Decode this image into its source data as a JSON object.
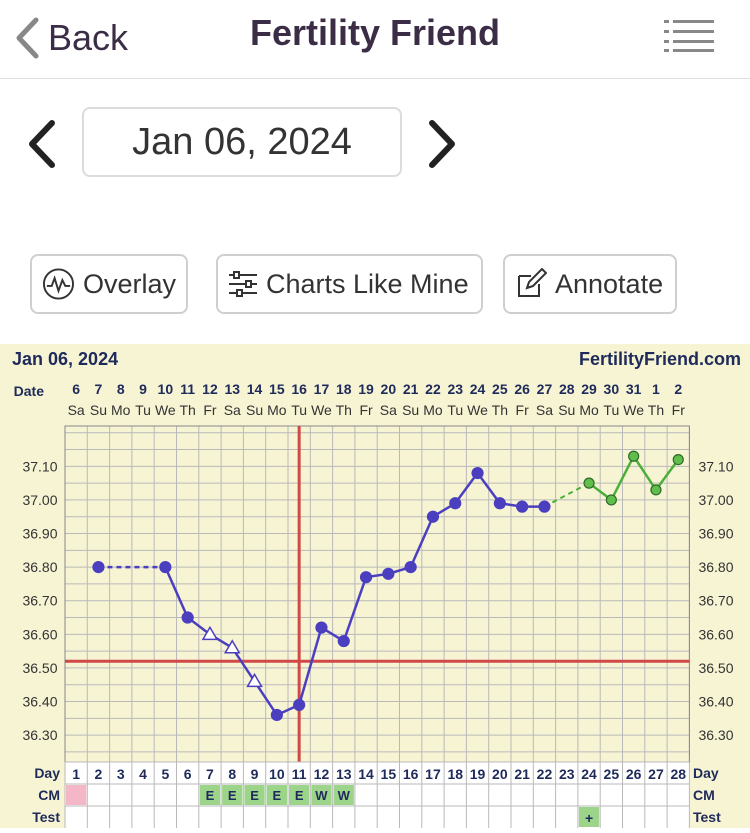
{
  "nav": {
    "back_label": "Back",
    "title": "Fertility Friend"
  },
  "date": {
    "value": "Jan 06, 2024"
  },
  "actions": {
    "overlay": "Overlay",
    "charts_like_mine": "Charts Like Mine",
    "annotate": "Annotate"
  },
  "chart_header": {
    "date": "Jan 06, 2024",
    "site": "FertilityFriend.com"
  },
  "chart_data": {
    "type": "line",
    "top_row_label": "Date",
    "dates": [
      "6",
      "7",
      "8",
      "9",
      "10",
      "11",
      "12",
      "13",
      "14",
      "15",
      "16",
      "17",
      "18",
      "19",
      "20",
      "21",
      "22",
      "23",
      "24",
      "25",
      "26",
      "27",
      "28",
      "29",
      "30",
      "31",
      "1",
      "2"
    ],
    "weekdays": [
      "Sa",
      "Su",
      "Mo",
      "Tu",
      "We",
      "Th",
      "Fr",
      "Sa",
      "Su",
      "Mo",
      "Tu",
      "We",
      "Th",
      "Fr",
      "Sa",
      "Su",
      "Mo",
      "Tu",
      "We",
      "Th",
      "Fr",
      "Sa",
      "Su",
      "Mo",
      "Tu",
      "We",
      "Th",
      "Fr"
    ],
    "day_row_label": "Day",
    "days": [
      1,
      2,
      3,
      4,
      5,
      6,
      7,
      8,
      9,
      10,
      11,
      12,
      13,
      14,
      15,
      16,
      17,
      18,
      19,
      20,
      21,
      22,
      23,
      24,
      25,
      26,
      27,
      28
    ],
    "y_ticks": [
      "37.10",
      "37.00",
      "36.90",
      "36.80",
      "36.70",
      "36.60",
      "36.50",
      "36.40",
      "36.30"
    ],
    "ylim": [
      36.22,
      37.22
    ],
    "series": [
      {
        "color": "#4b3fc0",
        "points": [
          {
            "day": 2,
            "y": 36.8,
            "marker": "dot"
          },
          {
            "day": 5,
            "y": 36.8,
            "marker": "dot"
          },
          {
            "day": 6,
            "y": 36.65,
            "marker": "dot"
          },
          {
            "day": 7,
            "y": 36.6,
            "marker": "triangle"
          },
          {
            "day": 8,
            "y": 36.56,
            "marker": "triangle"
          },
          {
            "day": 9,
            "y": 36.46,
            "marker": "triangle"
          },
          {
            "day": 10,
            "y": 36.36,
            "marker": "dot"
          },
          {
            "day": 11,
            "y": 36.39,
            "marker": "dot"
          },
          {
            "day": 12,
            "y": 36.62,
            "marker": "dot"
          },
          {
            "day": 13,
            "y": 36.58,
            "marker": "dot"
          },
          {
            "day": 14,
            "y": 36.77,
            "marker": "dot"
          },
          {
            "day": 15,
            "y": 36.78,
            "marker": "dot"
          },
          {
            "day": 16,
            "y": 36.8,
            "marker": "dot"
          },
          {
            "day": 17,
            "y": 36.95,
            "marker": "dot"
          },
          {
            "day": 18,
            "y": 36.99,
            "marker": "dot"
          },
          {
            "day": 19,
            "y": 37.08,
            "marker": "dot"
          },
          {
            "day": 20,
            "y": 36.99,
            "marker": "dot"
          },
          {
            "day": 21,
            "y": 36.98,
            "marker": "dot"
          },
          {
            "day": 22,
            "y": 36.98,
            "marker": "dot"
          }
        ],
        "dashed_after_index": [
          0
        ]
      },
      {
        "color": "#4caf3a",
        "points": [
          {
            "day": 24,
            "y": 37.05,
            "marker": "dot"
          },
          {
            "day": 25,
            "y": 37.0,
            "marker": "dot"
          },
          {
            "day": 26,
            "y": 37.13,
            "marker": "dot"
          },
          {
            "day": 27,
            "y": 37.03,
            "marker": "dot"
          },
          {
            "day": 28,
            "y": 37.12,
            "marker": "dot"
          }
        ]
      }
    ],
    "connector": {
      "from": {
        "day": 22,
        "y": 36.98
      },
      "to": {
        "day": 24,
        "y": 37.05
      },
      "color": "#4caf3a",
      "dashed": true
    },
    "coverline": 36.52,
    "ovulation_day": 11,
    "cm_label": "CM",
    "cm": [
      {
        "day": 1,
        "value": "",
        "color": "#f4b7c8"
      },
      {
        "day": 7,
        "value": "E"
      },
      {
        "day": 8,
        "value": "E"
      },
      {
        "day": 9,
        "value": "E"
      },
      {
        "day": 10,
        "value": "E"
      },
      {
        "day": 11,
        "value": "E"
      },
      {
        "day": 12,
        "value": "W"
      },
      {
        "day": 13,
        "value": "W"
      }
    ],
    "test_label": "Test",
    "test": [
      {
        "day": 24,
        "value": "+"
      }
    ]
  },
  "colors": {
    "chart_bg": "#f7f4d4",
    "grid": "#b9b9b9",
    "header_text": "#1e2a5a",
    "coverline": "#d04848"
  }
}
